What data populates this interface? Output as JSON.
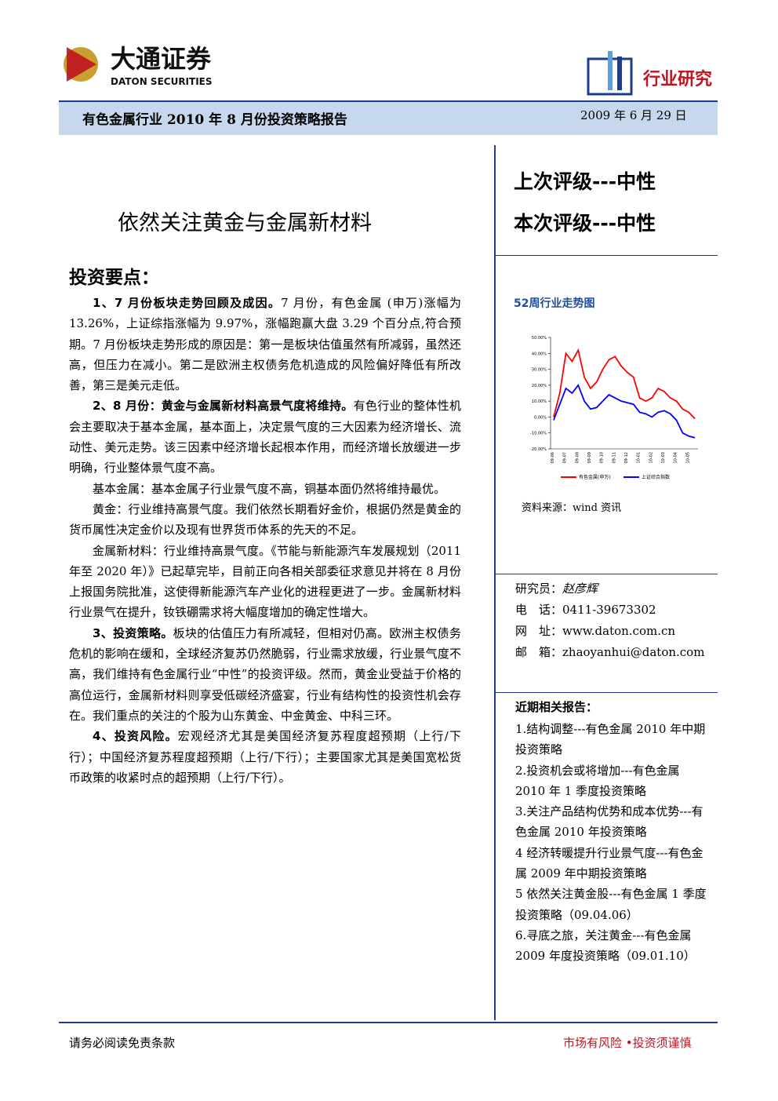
{
  "header": {
    "logo_cn": "大通证券",
    "logo_en": "DATON SECURITIES",
    "category": "行业研究",
    "report_title": "有色金属行业 2010 年 8 月份投资策略报告",
    "date": "2009 年 6 月 29 日"
  },
  "title": "依然关注黄金与金属新材料",
  "section_heading": "投资要点：",
  "paragraphs": [
    {
      "lead": "1、7 月份板块走势回顾及成因。",
      "text": "7 月份，有色金属 (申万)涨幅为 13.26%，上证综指涨幅为 9.97%，涨幅跑赢大盘 3.29 个百分点,符合预期。7 月份板块走势形成的原因是：第一是板块估值虽然有所减弱，虽然还高，但压力在减小。第二是欧洲主权债务危机造成的风险偏好降低有所改善，第三是美元走低。"
    },
    {
      "lead": "2、8 月份：黄金与金属新材料高景气度将维持。",
      "text": "有色行业的整体性机会主要取决于基本金属，基本面上，决定景气度的三大因素为经济增长、流动性、美元走势。该三因素中经济增长起根本作用，而经济增长放缓进一步明确，行业整体景气度不高。"
    },
    {
      "lead": "",
      "text": "基本金属：基本金属子行业景气度不高，铜基本面仍然将维持最优。"
    },
    {
      "lead": "",
      "text": "黄金：行业维持高景气度。我们依然长期看好金价，根据仍然是黄金的货币属性决定金价以及现有世界货币体系的先天的不足。"
    },
    {
      "lead": "",
      "text": "金属新材料：行业维持高景气度。《节能与新能源汽车发展规划（2011 年至 2020 年）》已起草完毕，目前正向各相关部委征求意见并将在 8 月份上报国务院批准，这使得新能源汽车产业化的进程更进了一步。金属新材料行业景气在提升，钕铁硼需求将大幅度增加的确定性增大。"
    },
    {
      "lead": "3、投资策略。",
      "text": "板块的估值压力有所减轻，但相对仍高。欧洲主权债务危机的影响在缓和，全球经济复苏仍然脆弱，行业需求放缓，行业景气度不高，我们维持有色金属行业“中性”的投资评级。然而，黄金业受益于价格的高位运行，金属新材料则享受低碳经济盛宴，行业有结构性的投资性机会存在。我们重点的关注的个股为山东黄金、中金黄金、中科三环。"
    },
    {
      "lead": "4、投资风险。",
      "text": "宏观经济尤其是美国经济复苏程度超预期（上行/下行）；中国经济复苏程度超预期（上行/下行）；主要国家尤其是美国宽松货币政策的收紧时点的超预期（上行/下行）。"
    }
  ],
  "ratings": [
    "上次评级---中性",
    "本次评级---中性"
  ],
  "chart": {
    "type": "line",
    "title": "52周行业走势图",
    "categories": [
      "09-06",
      null,
      "09-07",
      null,
      "09-08",
      null,
      "09-09",
      null,
      "09-10",
      null,
      "09-11",
      null,
      "09-12",
      null,
      "10-01",
      null,
      "10-02",
      null,
      "10-03",
      null,
      "10-04",
      null,
      "10-05",
      null
    ],
    "series": [
      {
        "name": "有色金属(申万)",
        "color": "#ff0000",
        "values": [
          0,
          15,
          40,
          35,
          42,
          25,
          18,
          22,
          30,
          36,
          38,
          32,
          28,
          25,
          12,
          10,
          12,
          18,
          16,
          12,
          10,
          5,
          3,
          -1
        ]
      },
      {
        "name": "上证综合指数",
        "color": "#0000ff",
        "values": [
          -2,
          8,
          18,
          15,
          20,
          10,
          5,
          6,
          10,
          14,
          12,
          10,
          9,
          8,
          3,
          2,
          0,
          3,
          4,
          2,
          -2,
          -10,
          -12,
          -13
        ]
      }
    ],
    "ylim": [
      -20,
      50
    ],
    "yticks": [
      {
        "value": -20,
        "label": "-20.00%"
      },
      {
        "value": -10,
        "label": "-10.00%"
      },
      {
        "value": 0,
        "label": "0.00%"
      },
      {
        "value": 10,
        "label": "10.00%"
      },
      {
        "value": 20,
        "label": "20.00%"
      },
      {
        "value": 30,
        "label": "30.00%"
      },
      {
        "value": 40,
        "label": "40.00%"
      },
      {
        "value": 50,
        "label": "50.00%"
      }
    ],
    "source": "资料来源：wind 资讯"
  },
  "contact": [
    {
      "label": "研究员：",
      "value": "赵彦辉"
    },
    {
      "label": "电　话：",
      "value": "0411-39673302"
    },
    {
      "label": "网　址：",
      "value": "www.daton.com.cn"
    },
    {
      "label": "邮　箱：",
      "value": "zhaoyanhui@daton.com"
    }
  ],
  "related": {
    "heading": "近期相关报告：",
    "items": [
      "1.结构调整---有色金属 2010 年中期投资策略",
      "2.投资机会或将增加---有色金属 2010 年 1 季度投资策略",
      "3.关注产品结构优势和成本优势---有色金属 2010 年投资策略",
      "4 经济转暖提升行业景气度---有色金属 2009 年中期投资策略",
      "5 依然关注黄金股---有色金属 1 季度投资策略（09.04.06）",
      "6.寻底之旅，关注黄金---有色金属 2009 年度投资策略（09.01.10）"
    ]
  },
  "footer": {
    "left": "请务必阅读免责条款",
    "right": "市场有风险 •投资须谨慎"
  }
}
